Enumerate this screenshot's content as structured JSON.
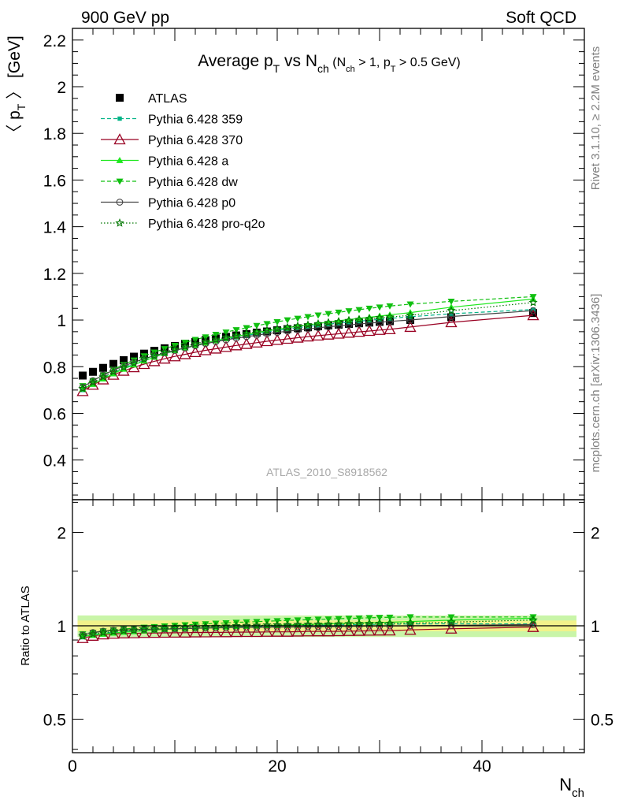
{
  "header": {
    "left": "900 GeV pp",
    "right": "Soft QCD"
  },
  "side_text": {
    "upper": "Rivet 3.1.10, ≥ 2.2M events",
    "lower": "mcplots.cern.ch [arXiv:1306.3436]"
  },
  "title": {
    "main_prefix": "Average p",
    "main_sub": "T",
    "main_mid": " vs N",
    "main_sub2": "ch",
    "cut_open": " (N",
    "cut_sub1": "ch",
    "cut_mid": " > 1, p",
    "cut_sub2": "T",
    "cut_close": " > 0.5 GeV)"
  },
  "analysis_label": "ATLAS_2010_S8918562",
  "colors": {
    "atlas": "#000000",
    "py359": "#00b386",
    "py370": "#990022",
    "pya": "#1ee81e",
    "pydw": "#10c010",
    "pyp0": "#444444",
    "pyq2o": "#007700",
    "band_inner": "#f2f28a",
    "band_outer": "#c9f5a8"
  },
  "chart_data": [
    {
      "type": "scatter",
      "panel": "main",
      "ylabel_prefix": "〈 p",
      "ylabel_sub": "T",
      "ylabel_suffix": " 〉 [GeV]",
      "xlim": [
        0,
        50
      ],
      "ylim": [
        0.23,
        2.25
      ],
      "y_ticks": [
        0.4,
        0.6,
        0.8,
        1,
        1.2,
        1.4,
        1.6,
        1.8,
        2,
        2.2
      ],
      "y_tick_labels": [
        "0.4",
        "0.6",
        "0.8",
        "1",
        "1.2",
        "1.4",
        "1.6",
        "1.8",
        "2",
        "2.2"
      ],
      "x": [
        1,
        2,
        3,
        4,
        5,
        6,
        7,
        8,
        9,
        10,
        11,
        12,
        13,
        14,
        15,
        16,
        17,
        18,
        19,
        20,
        21,
        22,
        23,
        24,
        25,
        26,
        27,
        28,
        29,
        30,
        31,
        33,
        37,
        45
      ],
      "series": [
        {
          "name": "ATLAS",
          "key": "atlas",
          "marker": "square",
          "line": "none",
          "values": [
            0.762,
            0.778,
            0.795,
            0.812,
            0.828,
            0.843,
            0.856,
            0.868,
            0.879,
            0.889,
            0.898,
            0.906,
            0.914,
            0.921,
            0.928,
            0.934,
            0.94,
            0.946,
            0.951,
            0.956,
            0.961,
            0.965,
            0.969,
            0.973,
            0.977,
            0.98,
            0.983,
            0.986,
            0.989,
            0.992,
            0.995,
            1.0,
            1.012,
            1.03
          ]
        },
        {
          "name": "Pythia 6.428 359",
          "key": "py359",
          "marker": "smallsquare",
          "line": "dashed",
          "values": [
            0.7,
            0.728,
            0.752,
            0.774,
            0.793,
            0.811,
            0.827,
            0.842,
            0.855,
            0.868,
            0.879,
            0.89,
            0.9,
            0.909,
            0.918,
            0.926,
            0.934,
            0.941,
            0.948,
            0.955,
            0.961,
            0.967,
            0.972,
            0.977,
            0.982,
            0.987,
            0.991,
            0.995,
            0.999,
            1.003,
            1.007,
            1.014,
            1.027,
            1.045
          ]
        },
        {
          "name": "Pythia 6.428 370",
          "key": "py370",
          "marker": "opentriangle",
          "line": "solid",
          "values": [
            0.695,
            0.722,
            0.745,
            0.765,
            0.782,
            0.797,
            0.811,
            0.823,
            0.834,
            0.844,
            0.853,
            0.862,
            0.87,
            0.877,
            0.884,
            0.891,
            0.897,
            0.903,
            0.909,
            0.914,
            0.919,
            0.924,
            0.929,
            0.933,
            0.937,
            0.941,
            0.945,
            0.949,
            0.953,
            0.957,
            0.96,
            0.97,
            0.99,
            1.02
          ]
        },
        {
          "name": "Pythia 6.428 a",
          "key": "pya",
          "marker": "triangle",
          "line": "solid",
          "values": [
            0.705,
            0.725,
            0.748,
            0.77,
            0.79,
            0.808,
            0.825,
            0.841,
            0.856,
            0.869,
            0.881,
            0.892,
            0.902,
            0.912,
            0.921,
            0.93,
            0.938,
            0.946,
            0.953,
            0.96,
            0.967,
            0.973,
            0.979,
            0.985,
            0.991,
            0.997,
            1.002,
            1.007,
            1.012,
            1.017,
            1.022,
            1.032,
            1.055,
            1.09
          ]
        },
        {
          "name": "Pythia 6.428 dw",
          "key": "pydw",
          "marker": "invtriangle",
          "line": "dashed",
          "values": [
            0.718,
            0.74,
            0.765,
            0.788,
            0.809,
            0.828,
            0.846,
            0.862,
            0.877,
            0.891,
            0.904,
            0.916,
            0.927,
            0.938,
            0.948,
            0.958,
            0.967,
            0.976,
            0.984,
            0.992,
            1.0,
            1.007,
            1.014,
            1.021,
            1.027,
            1.033,
            1.039,
            1.044,
            1.05,
            1.055,
            1.06,
            1.068,
            1.08,
            1.1
          ]
        },
        {
          "name": "Pythia 6.428 p0",
          "key": "pyp0",
          "marker": "opencircle",
          "line": "solid",
          "values": [
            0.712,
            0.74,
            0.764,
            0.785,
            0.803,
            0.819,
            0.834,
            0.847,
            0.859,
            0.87,
            0.88,
            0.89,
            0.899,
            0.907,
            0.915,
            0.922,
            0.929,
            0.935,
            0.941,
            0.947,
            0.952,
            0.957,
            0.962,
            0.967,
            0.971,
            0.975,
            0.979,
            0.983,
            0.987,
            0.99,
            0.994,
            1.0,
            1.015,
            1.04
          ]
        },
        {
          "name": "Pythia 6.428 pro-q2o",
          "key": "pyq2o",
          "marker": "openstar",
          "line": "dotted",
          "values": [
            0.706,
            0.732,
            0.756,
            0.778,
            0.798,
            0.816,
            0.833,
            0.848,
            0.862,
            0.875,
            0.887,
            0.898,
            0.908,
            0.917,
            0.926,
            0.934,
            0.942,
            0.949,
            0.956,
            0.962,
            0.968,
            0.974,
            0.979,
            0.984,
            0.989,
            0.993,
            0.998,
            1.002,
            1.006,
            1.01,
            1.013,
            1.02,
            1.04,
            1.075
          ]
        }
      ],
      "legend_position": "top-left",
      "grid": false
    },
    {
      "type": "scatter",
      "panel": "ratio",
      "ylabel": "Ratio to ATLAS",
      "yscale": "log",
      "xlim": [
        0,
        50
      ],
      "ylim": [
        0.39,
        2.55
      ],
      "xlabel": "N",
      "xlabel_sub": "ch",
      "x_ticks": [
        0,
        20,
        40
      ],
      "x_tick_labels": [
        "0",
        "20",
        "40"
      ],
      "y_ticks": [
        0.5,
        1,
        2
      ],
      "y_tick_labels": [
        "0.5",
        "1",
        "2"
      ],
      "reference_line": 1,
      "uncertainty_band_inner": 0.04,
      "uncertainty_band_outer": 0.08
    }
  ]
}
